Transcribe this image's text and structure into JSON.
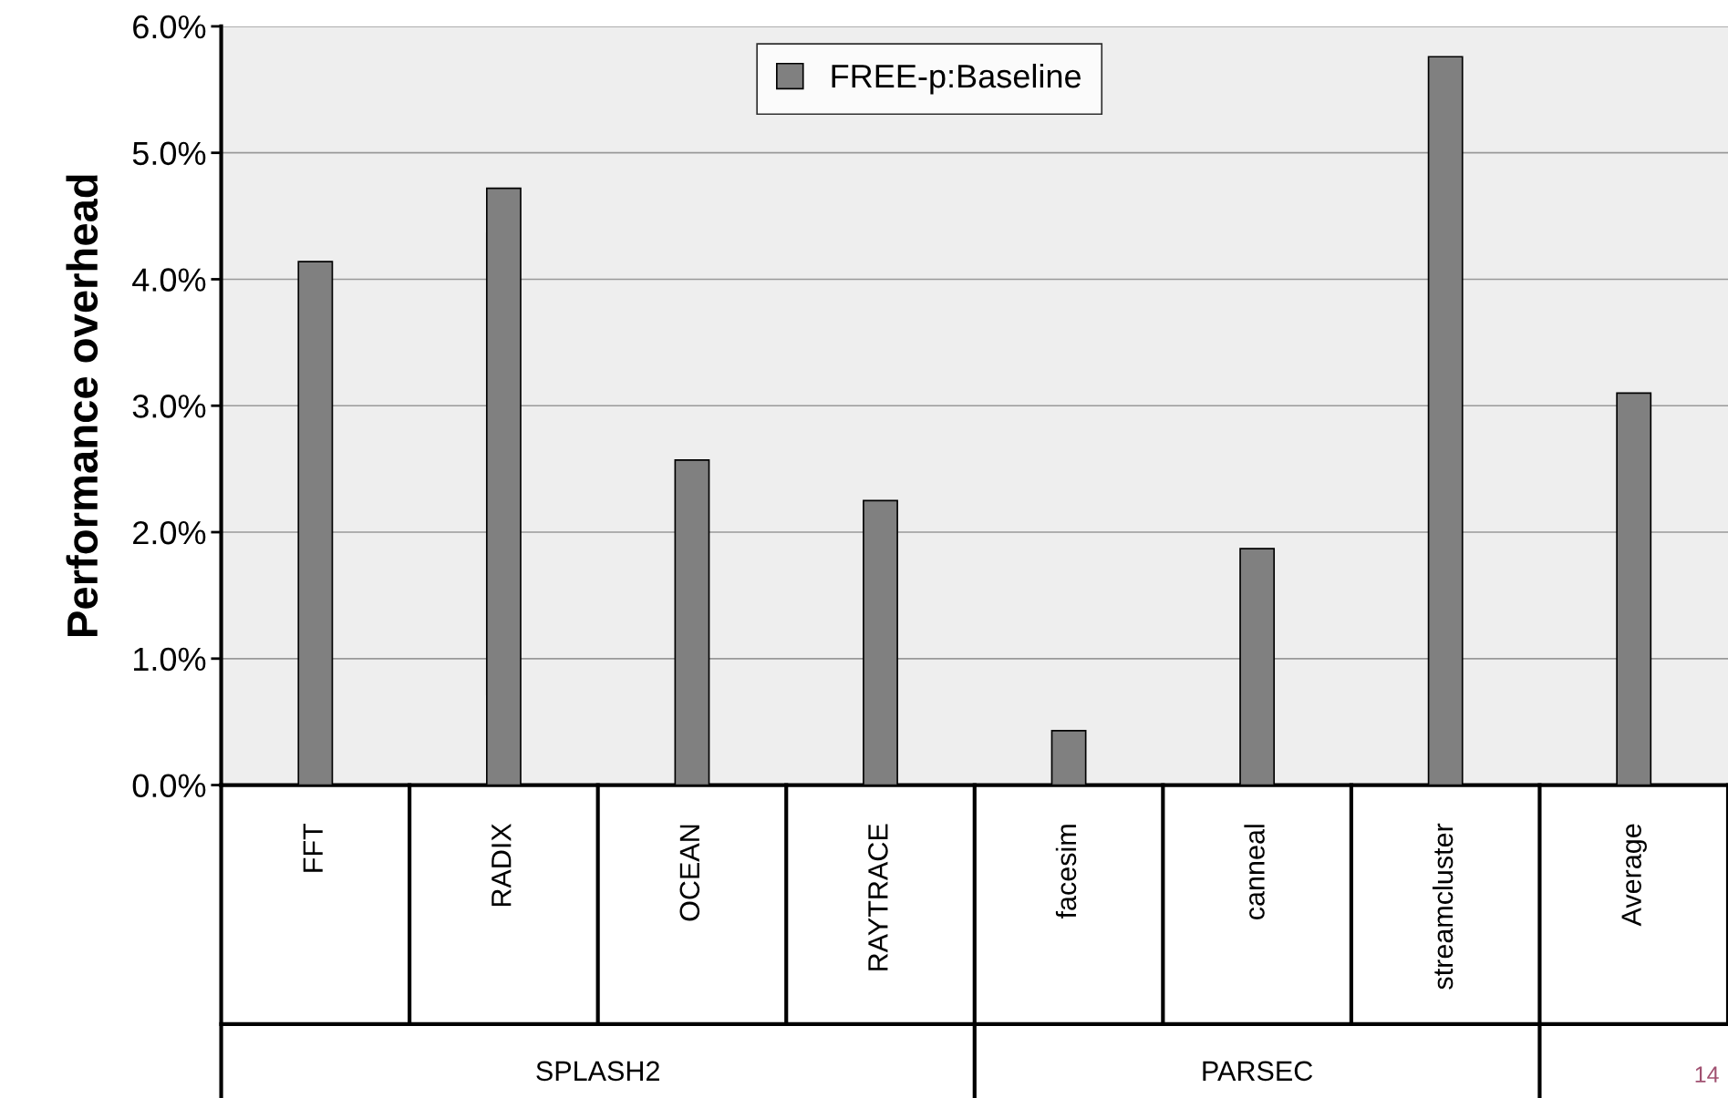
{
  "chart_data": {
    "type": "bar",
    "ylabel": "Performance overhead",
    "categories": [
      "FFT",
      "RADIX",
      "OCEAN",
      "RAYTRACE",
      "facesim",
      "canneal",
      "streamcluster",
      "Average"
    ],
    "series": [
      {
        "name": "FREE-p:Baseline",
        "color": "#808080",
        "values": [
          4.14,
          4.72,
          2.57,
          2.25,
          0.43,
          1.87,
          5.76,
          3.1
        ]
      }
    ],
    "ylim": [
      0,
      6
    ],
    "yticks": [
      {
        "value": 0,
        "label": "0.0%"
      },
      {
        "value": 1,
        "label": "1.0%"
      },
      {
        "value": 2,
        "label": "2.0%"
      },
      {
        "value": 3,
        "label": "3.0%"
      },
      {
        "value": 4,
        "label": "4.0%"
      },
      {
        "value": 5,
        "label": "5.0%"
      },
      {
        "value": 6,
        "label": "6.0%"
      }
    ],
    "grid": "y",
    "legend": "top",
    "annotations": [
      "SPLASH2",
      "PARSEC",
      "14"
    ]
  }
}
